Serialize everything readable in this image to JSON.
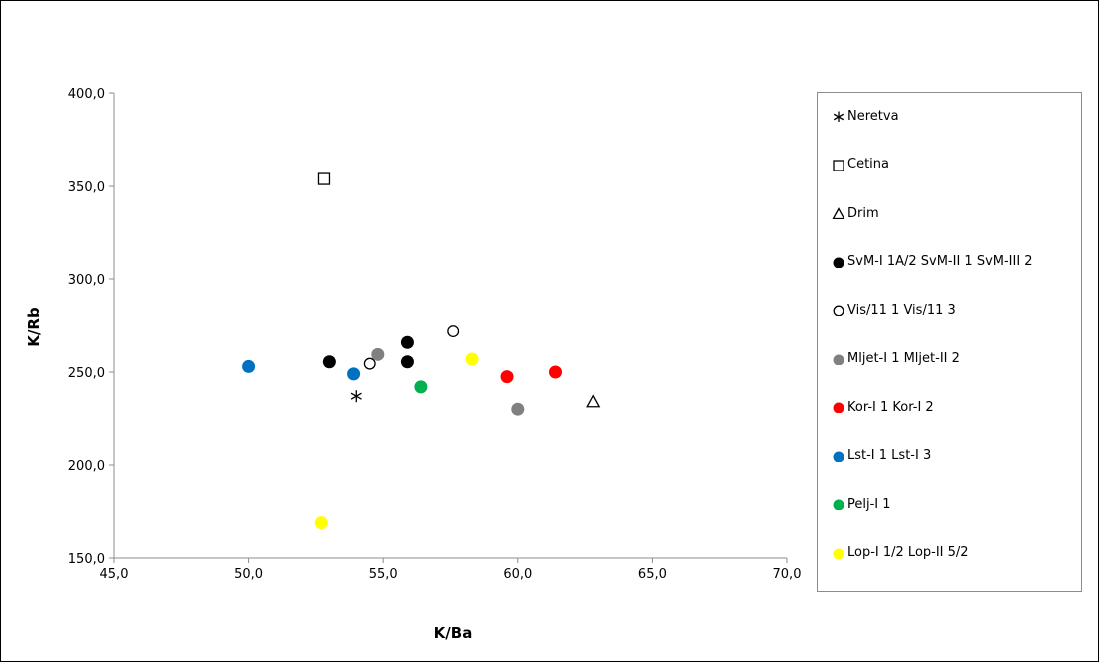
{
  "chart_data": {
    "type": "scatter",
    "xlabel": "K/Ba",
    "ylabel": "K/Rb",
    "xlim": [
      45,
      70
    ],
    "ylim": [
      150,
      400
    ],
    "xticks": [
      "45,0",
      "50,0",
      "55,0",
      "60,0",
      "65,0",
      "70,0"
    ],
    "yticks": [
      "150,0",
      "200,0",
      "250,0",
      "300,0",
      "350,0",
      "400,0"
    ],
    "grid": false,
    "legend_position": "right",
    "series": [
      {
        "name": "Neretva",
        "marker": "asterisk",
        "color": "#000000",
        "points": [
          [
            54.0,
            237.0
          ]
        ]
      },
      {
        "name": "Cetina",
        "marker": "square-open",
        "color": "#000000",
        "points": [
          [
            52.8,
            354.0
          ]
        ]
      },
      {
        "name": "Drim",
        "marker": "triangle-open",
        "color": "#000000",
        "points": [
          [
            62.8,
            234.0
          ]
        ]
      },
      {
        "name": "SvM-I 1A/2 SvM-II 1 SvM-III 2",
        "marker": "circle",
        "color": "#000000",
        "points": [
          [
            53.0,
            255.5
          ],
          [
            55.9,
            266.0
          ],
          [
            55.9,
            255.5
          ]
        ]
      },
      {
        "name": "Vis/11 1 Vis/11 3",
        "marker": "circle-open",
        "color": "#000000",
        "points": [
          [
            54.5,
            254.5
          ],
          [
            57.6,
            272.0
          ]
        ]
      },
      {
        "name": "Mljet-I 1 Mljet-II 2",
        "marker": "circle",
        "color": "#808080",
        "points": [
          [
            54.8,
            259.5
          ],
          [
            60.0,
            230.0
          ]
        ]
      },
      {
        "name": "Kor-I 1 Kor-I 2",
        "marker": "circle",
        "color": "#ff0000",
        "points": [
          [
            59.6,
            247.5
          ],
          [
            61.4,
            250.0
          ]
        ]
      },
      {
        "name": "Lst-I 1 Lst-I 3",
        "marker": "circle",
        "color": "#0070c0",
        "points": [
          [
            50.0,
            253.0
          ],
          [
            53.9,
            249.0
          ]
        ]
      },
      {
        "name": "Pelj-I 1",
        "marker": "circle",
        "color": "#00b050",
        "points": [
          [
            56.4,
            242.0
          ]
        ]
      },
      {
        "name": "Lop-I 1/2 Lop-II 5/2",
        "marker": "circle",
        "color": "#ffff00",
        "points": [
          [
            58.3,
            257.0
          ],
          [
            52.7,
            169.0
          ]
        ]
      }
    ]
  }
}
